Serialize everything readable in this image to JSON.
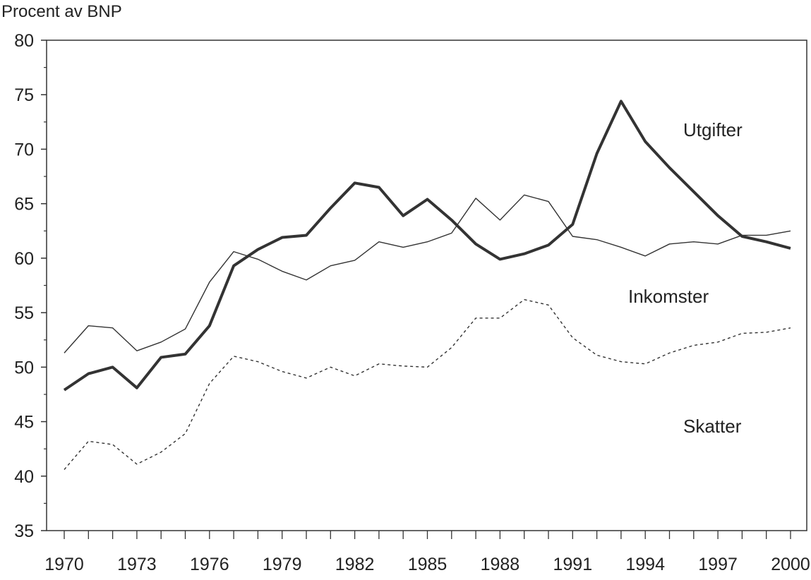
{
  "chart_data": {
    "type": "line",
    "title": "",
    "ylabel": "Procent av BNP",
    "xlabel": "",
    "xlim": [
      1970,
      2000
    ],
    "ylim": [
      35,
      80
    ],
    "yticks": [
      "35",
      "40",
      "45",
      "50",
      "55",
      "60",
      "65",
      "70",
      "75",
      "80"
    ],
    "xticks": [
      "1970",
      "1973",
      "1976",
      "1979",
      "1982",
      "1985",
      "1988",
      "1991",
      "1994",
      "1997",
      "2000"
    ],
    "grid": false,
    "x": [
      1970,
      1971,
      1972,
      1973,
      1974,
      1975,
      1976,
      1977,
      1978,
      1979,
      1980,
      1981,
      1982,
      1983,
      1984,
      1985,
      1986,
      1987,
      1988,
      1989,
      1990,
      1991,
      1992,
      1993,
      1994,
      1995,
      1996,
      1997,
      1998,
      1999,
      2000
    ],
    "series": [
      {
        "name": "Utgifter",
        "style": "thick",
        "values": [
          47.9,
          49.4,
          50.0,
          48.1,
          50.9,
          51.2,
          53.8,
          59.3,
          60.8,
          61.9,
          62.1,
          64.6,
          66.9,
          66.5,
          63.9,
          65.4,
          63.5,
          61.3,
          59.9,
          60.4,
          61.2,
          63.1,
          69.6,
          74.4,
          70.7,
          68.3,
          66.1,
          63.9,
          62.0,
          61.5,
          60.9
        ]
      },
      {
        "name": "Inkomster",
        "style": "thin",
        "values": [
          51.3,
          53.8,
          53.6,
          51.5,
          52.3,
          53.5,
          57.8,
          60.6,
          59.9,
          58.8,
          58.0,
          59.3,
          59.8,
          61.5,
          61.0,
          61.5,
          62.3,
          65.5,
          63.5,
          65.8,
          65.2,
          62.0,
          61.7,
          61.0,
          60.2,
          61.3,
          61.5,
          61.3,
          62.1,
          62.1,
          62.5
        ]
      },
      {
        "name": "Skatter",
        "style": "dotted",
        "values": [
          40.6,
          43.2,
          42.9,
          41.1,
          42.2,
          43.9,
          48.5,
          51.0,
          50.5,
          49.6,
          49.0,
          50.0,
          49.2,
          50.3,
          50.1,
          50.0,
          51.8,
          54.5,
          54.5,
          56.2,
          55.7,
          52.7,
          51.1,
          50.5,
          50.3,
          51.3,
          52.0,
          52.3,
          53.1,
          53.2,
          53.6
        ]
      }
    ],
    "line_color": "#333333"
  }
}
